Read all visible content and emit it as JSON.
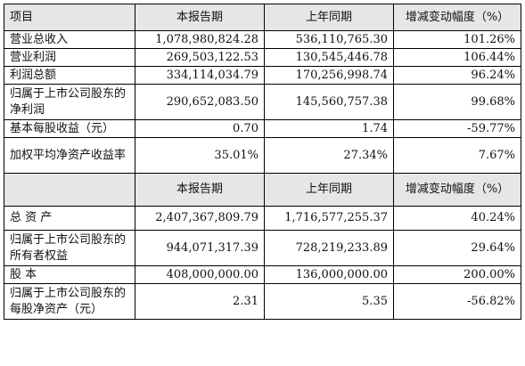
{
  "table1": {
    "headers": [
      "项目",
      "本报告期",
      "上年同期",
      "增减变动幅度（%）"
    ],
    "rows": [
      [
        "营业总收入",
        "1,078,980,824.28",
        "536,110,765.30",
        "101.26%"
      ],
      [
        "营业利润",
        "269,503,122.53",
        "130,545,446.78",
        "106.44%"
      ],
      [
        "利润总额",
        "334,114,034.79",
        "170,256,998.74",
        "96.24%"
      ],
      [
        "归属于上市公司股东的净利润",
        "290,652,083.50",
        "145,560,757.38",
        "99.68%"
      ],
      [
        "基本每股收益（元）",
        "0.70",
        "1.74",
        "-59.77%"
      ],
      [
        "加权平均净资产收益率",
        "35.01%",
        "27.34%",
        "7.67%"
      ]
    ]
  },
  "table2": {
    "headers": [
      "",
      "本报告期",
      "上年同期",
      "增减变动幅度（%）"
    ],
    "rows": [
      [
        "总 资 产",
        "2,407,367,809.79",
        "1,716,577,255.37",
        "40.24%"
      ],
      [
        "归属于上市公司股东的所有者权益",
        "944,071,317.39",
        "728,219,233.89",
        "29.64%"
      ],
      [
        "股 本",
        "408,000,000.00",
        "136,000,000.00",
        "200.00%"
      ],
      [
        "归属于上市公司股东的每股净资产（元）",
        "2.31",
        "5.35",
        "-56.82%"
      ]
    ]
  }
}
